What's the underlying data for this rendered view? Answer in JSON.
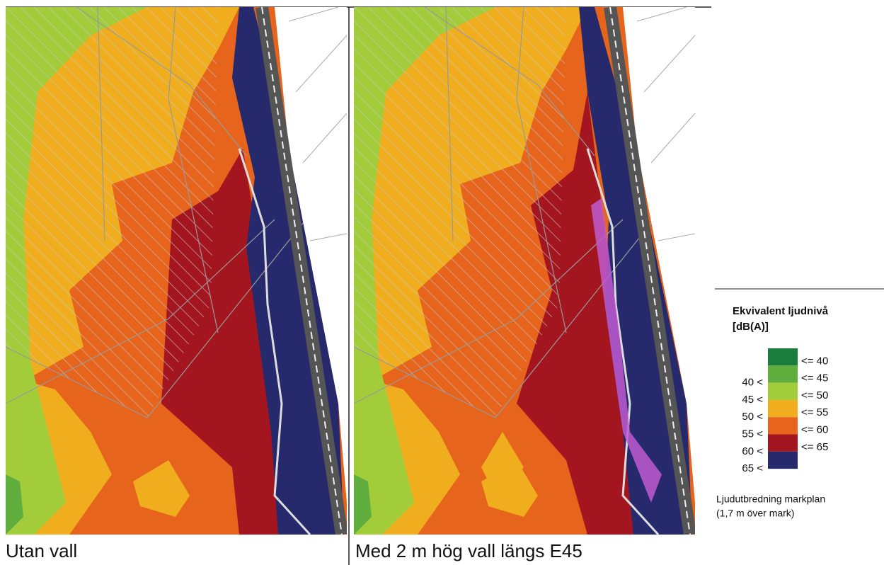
{
  "panels": [
    {
      "caption": "Utan vall"
    },
    {
      "caption": "Med 2 m hög vall längs E45"
    }
  ],
  "legend": {
    "title_lines": [
      "Ekvivalent ljudnivå",
      "[dB(A)]"
    ],
    "rows": [
      {
        "upper": "<= 40",
        "color": "#1b7d3b"
      },
      {
        "lower": "40 <",
        "upper": "<= 45",
        "color": "#5fae3e"
      },
      {
        "lower": "45 <",
        "upper": "<= 50",
        "color": "#a3cc3a"
      },
      {
        "lower": "50 <",
        "upper": "<= 55",
        "color": "#f0ae1e"
      },
      {
        "lower": "55 <",
        "upper": "<= 60",
        "color": "#e6641c"
      },
      {
        "lower": "60 <",
        "upper": "<= 65",
        "color": "#a3161f"
      },
      {
        "lower": "65 <",
        "color": "#262a6c"
      }
    ],
    "note_lines": [
      "Ljudutbredning markplan",
      "(1,7 m över mark)"
    ]
  }
}
